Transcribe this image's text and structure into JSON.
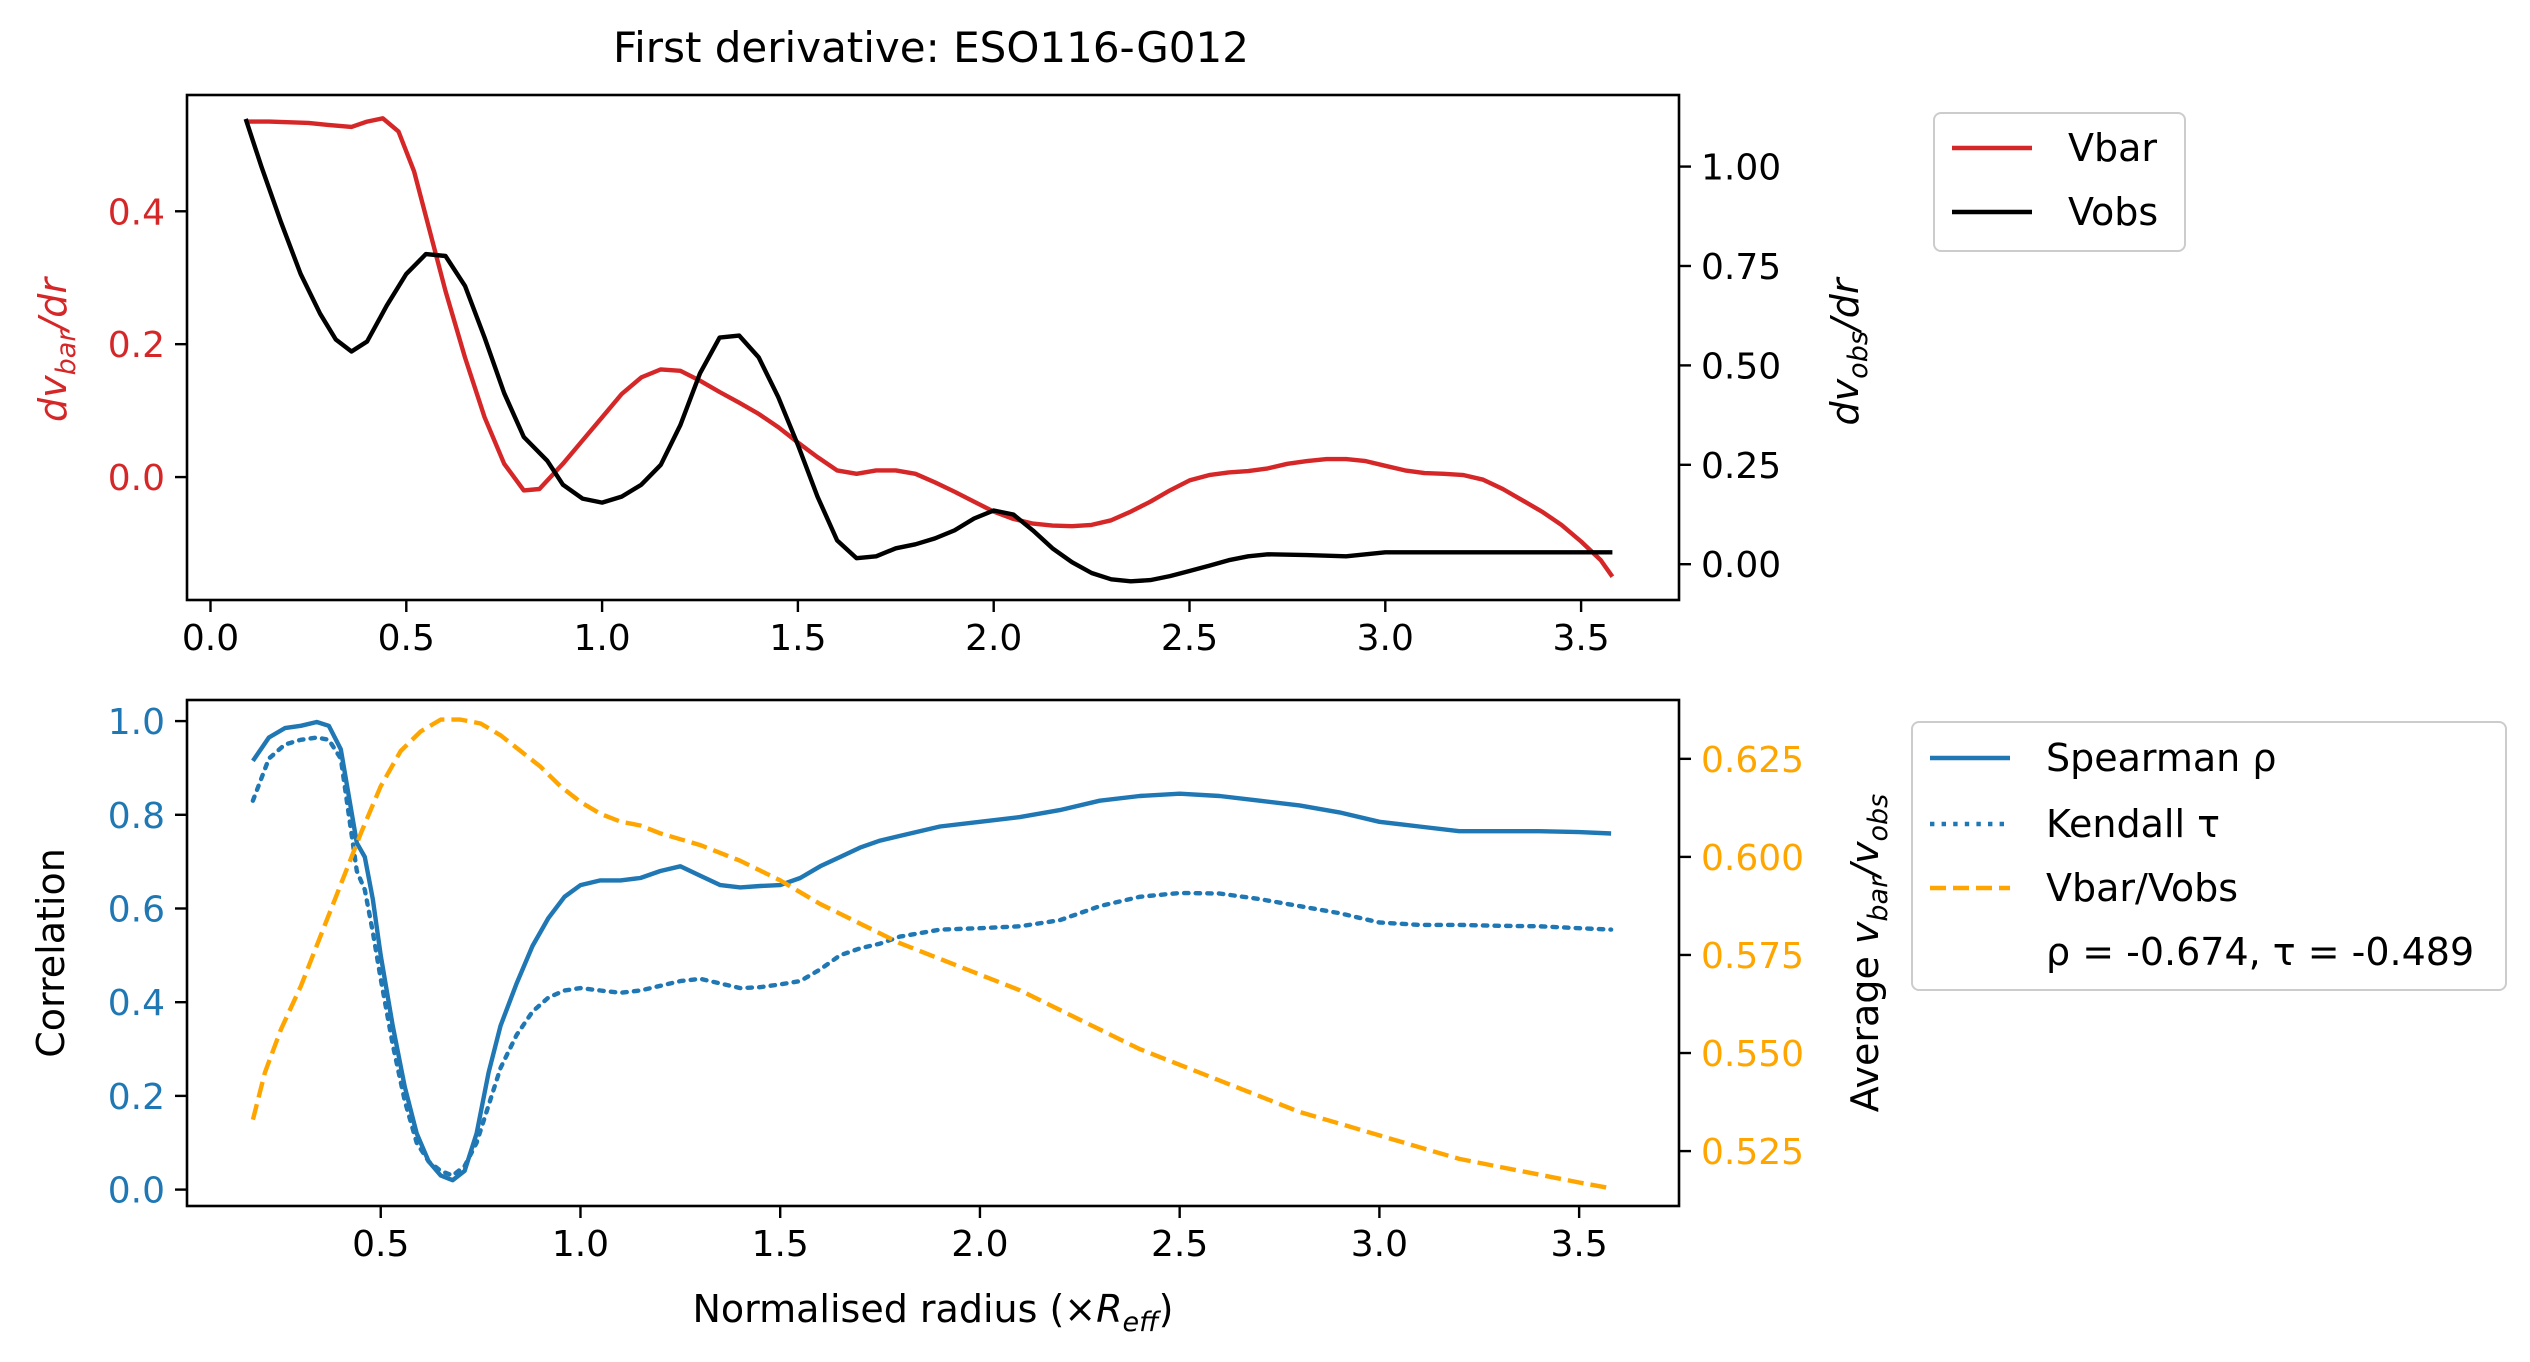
{
  "colors": {
    "vbar": "#d62728",
    "vobs": "#000000",
    "spearman": "#1f77b4",
    "kendall": "#1f77b4",
    "ratio": "#ffa500",
    "frame": "#000000"
  },
  "chart_data": [
    {
      "type": "line",
      "title": "First derivative: ESO116-G012",
      "xlabel": "",
      "ylabel_left": "dv_bar/dr",
      "ylabel_right": "dv_obs/dr",
      "xlim": [
        -0.06,
        3.75
      ],
      "ylim_left": [
        -0.185,
        0.575
      ],
      "ylim_right": [
        -0.09,
        1.18
      ],
      "xticks": [
        0.0,
        0.5,
        1.0,
        1.5,
        2.0,
        2.5,
        3.0,
        3.5
      ],
      "xtick_labels": [
        "0.0",
        "0.5",
        "1.0",
        "1.5",
        "2.0",
        "2.5",
        "3.0",
        "3.5"
      ],
      "yticks_left": [
        0.0,
        0.2,
        0.4
      ],
      "ytick_labels_left": [
        "0.0",
        "0.2",
        "0.4"
      ],
      "yticks_right": [
        0.0,
        0.25,
        0.5,
        0.75,
        1.0
      ],
      "ytick_labels_right": [
        "0.00",
        "0.25",
        "0.50",
        "0.75",
        "1.00"
      ],
      "legend": {
        "placement": "outside-upper-right",
        "entries": [
          "Vbar",
          "Vobs"
        ]
      },
      "series": [
        {
          "name": "Vbar",
          "axis": "left",
          "x": [
            0.09,
            0.15,
            0.25,
            0.3,
            0.36,
            0.4,
            0.44,
            0.48,
            0.52,
            0.56,
            0.6,
            0.65,
            0.7,
            0.75,
            0.8,
            0.84,
            0.9,
            0.95,
            1.0,
            1.05,
            1.1,
            1.15,
            1.2,
            1.25,
            1.3,
            1.35,
            1.4,
            1.45,
            1.5,
            1.55,
            1.6,
            1.65,
            1.7,
            1.75,
            1.8,
            1.85,
            1.9,
            1.95,
            2.0,
            2.05,
            2.1,
            2.15,
            2.2,
            2.25,
            2.3,
            2.35,
            2.4,
            2.45,
            2.5,
            2.55,
            2.6,
            2.65,
            2.7,
            2.75,
            2.8,
            2.85,
            2.9,
            2.95,
            3.0,
            3.05,
            3.1,
            3.15,
            3.2,
            3.25,
            3.3,
            3.35,
            3.4,
            3.45,
            3.5,
            3.55,
            3.58
          ],
          "y": [
            0.535,
            0.535,
            0.533,
            0.53,
            0.527,
            0.535,
            0.54,
            0.52,
            0.46,
            0.37,
            0.28,
            0.18,
            0.09,
            0.02,
            -0.02,
            -0.018,
            0.02,
            0.055,
            0.09,
            0.125,
            0.15,
            0.162,
            0.16,
            0.145,
            0.128,
            0.112,
            0.095,
            0.075,
            0.052,
            0.03,
            0.01,
            0.005,
            0.01,
            0.01,
            0.005,
            -0.008,
            -0.022,
            -0.037,
            -0.052,
            -0.063,
            -0.07,
            -0.073,
            -0.074,
            -0.072,
            -0.065,
            -0.052,
            -0.037,
            -0.02,
            -0.005,
            0.003,
            0.007,
            0.009,
            0.013,
            0.02,
            0.024,
            0.027,
            0.027,
            0.024,
            0.017,
            0.01,
            0.006,
            0.005,
            0.003,
            -0.004,
            -0.018,
            -0.035,
            -0.052,
            -0.072,
            -0.097,
            -0.125,
            -0.15
          ]
        },
        {
          "name": "Vobs",
          "axis": "right",
          "x": [
            0.09,
            0.13,
            0.18,
            0.23,
            0.28,
            0.32,
            0.36,
            0.4,
            0.45,
            0.5,
            0.55,
            0.6,
            0.65,
            0.7,
            0.75,
            0.8,
            0.86,
            0.9,
            0.95,
            1.0,
            1.05,
            1.1,
            1.15,
            1.2,
            1.25,
            1.3,
            1.35,
            1.4,
            1.45,
            1.5,
            1.55,
            1.6,
            1.65,
            1.7,
            1.75,
            1.8,
            1.85,
            1.9,
            1.95,
            2.0,
            2.05,
            2.1,
            2.15,
            2.2,
            2.25,
            2.3,
            2.35,
            2.4,
            2.45,
            2.5,
            2.55,
            2.6,
            2.65,
            2.7,
            2.8,
            2.9,
            3.0,
            3.2,
            3.4,
            3.58
          ],
          "y": [
            1.12,
            1.0,
            0.86,
            0.73,
            0.63,
            0.565,
            0.535,
            0.56,
            0.65,
            0.73,
            0.78,
            0.775,
            0.7,
            0.57,
            0.43,
            0.32,
            0.26,
            0.2,
            0.165,
            0.155,
            0.17,
            0.2,
            0.25,
            0.35,
            0.48,
            0.57,
            0.575,
            0.52,
            0.42,
            0.3,
            0.17,
            0.06,
            0.015,
            0.02,
            0.04,
            0.05,
            0.065,
            0.085,
            0.115,
            0.135,
            0.125,
            0.085,
            0.04,
            0.005,
            -0.022,
            -0.038,
            -0.043,
            -0.04,
            -0.03,
            -0.017,
            -0.004,
            0.01,
            0.02,
            0.025,
            0.023,
            0.02,
            0.03,
            0.03,
            0.03,
            0.03
          ]
        }
      ]
    },
    {
      "type": "line",
      "title": "",
      "xlabel": "Normalised radius (×R_eff)",
      "ylabel_left": "Correlation",
      "ylabel_right": "Average v_bar/v_obs",
      "xlim": [
        0.015,
        3.75
      ],
      "ylim_left": [
        -0.035,
        1.045
      ],
      "ylim_right": [
        0.511,
        0.64
      ],
      "xticks": [
        0.5,
        1.0,
        1.5,
        2.0,
        2.5,
        3.0,
        3.5
      ],
      "xtick_labels": [
        "0.5",
        "1.0",
        "1.5",
        "2.0",
        "2.5",
        "3.0",
        "3.5"
      ],
      "yticks_left": [
        0.0,
        0.2,
        0.4,
        0.6,
        0.8,
        1.0
      ],
      "ytick_labels_left": [
        "0.0",
        "0.2",
        "0.4",
        "0.6",
        "0.8",
        "1.0"
      ],
      "yticks_right": [
        0.525,
        0.55,
        0.575,
        0.6,
        0.625
      ],
      "ytick_labels_right": [
        "0.525",
        "0.550",
        "0.575",
        "0.600",
        "0.625"
      ],
      "legend": {
        "placement": "outside-upper-right",
        "entries": [
          "Spearman ρ",
          "Kendall τ",
          "Vbar/Vobs"
        ],
        "note": "ρ = -0.674, τ = -0.489"
      },
      "series": [
        {
          "name": "Spearman ρ",
          "axis": "left",
          "style": "solid",
          "x": [
            0.18,
            0.22,
            0.26,
            0.3,
            0.34,
            0.37,
            0.4,
            0.42,
            0.44,
            0.46,
            0.48,
            0.5,
            0.53,
            0.56,
            0.59,
            0.62,
            0.65,
            0.68,
            0.71,
            0.74,
            0.77,
            0.8,
            0.84,
            0.88,
            0.92,
            0.96,
            1.0,
            1.05,
            1.1,
            1.15,
            1.2,
            1.25,
            1.3,
            1.35,
            1.4,
            1.45,
            1.5,
            1.55,
            1.6,
            1.65,
            1.7,
            1.75,
            1.8,
            1.9,
            2.0,
            2.1,
            2.2,
            2.3,
            2.4,
            2.5,
            2.6,
            2.7,
            2.8,
            2.9,
            3.0,
            3.1,
            3.2,
            3.3,
            3.4,
            3.5,
            3.58
          ],
          "y": [
            0.915,
            0.965,
            0.985,
            0.99,
            0.998,
            0.99,
            0.94,
            0.84,
            0.74,
            0.71,
            0.62,
            0.5,
            0.35,
            0.22,
            0.12,
            0.06,
            0.03,
            0.02,
            0.04,
            0.12,
            0.25,
            0.35,
            0.44,
            0.52,
            0.58,
            0.625,
            0.65,
            0.66,
            0.66,
            0.665,
            0.68,
            0.69,
            0.67,
            0.65,
            0.645,
            0.648,
            0.65,
            0.665,
            0.69,
            0.71,
            0.73,
            0.745,
            0.755,
            0.775,
            0.785,
            0.795,
            0.81,
            0.83,
            0.84,
            0.845,
            0.84,
            0.83,
            0.82,
            0.805,
            0.785,
            0.775,
            0.765,
            0.765,
            0.765,
            0.763,
            0.76
          ]
        },
        {
          "name": "Kendall τ",
          "axis": "left",
          "style": "dotted",
          "x": [
            0.18,
            0.22,
            0.26,
            0.3,
            0.34,
            0.37,
            0.4,
            0.42,
            0.44,
            0.46,
            0.48,
            0.5,
            0.53,
            0.56,
            0.59,
            0.62,
            0.65,
            0.68,
            0.71,
            0.74,
            0.77,
            0.8,
            0.84,
            0.88,
            0.92,
            0.96,
            1.0,
            1.05,
            1.1,
            1.15,
            1.2,
            1.25,
            1.3,
            1.35,
            1.4,
            1.45,
            1.5,
            1.55,
            1.6,
            1.65,
            1.7,
            1.75,
            1.8,
            1.9,
            2.0,
            2.1,
            2.2,
            2.3,
            2.4,
            2.5,
            2.6,
            2.7,
            2.8,
            2.9,
            3.0,
            3.1,
            3.2,
            3.3,
            3.4,
            3.5,
            3.58
          ],
          "y": [
            0.83,
            0.92,
            0.95,
            0.96,
            0.965,
            0.96,
            0.92,
            0.8,
            0.68,
            0.64,
            0.55,
            0.45,
            0.31,
            0.19,
            0.1,
            0.06,
            0.04,
            0.03,
            0.05,
            0.1,
            0.18,
            0.26,
            0.33,
            0.38,
            0.41,
            0.425,
            0.43,
            0.425,
            0.42,
            0.425,
            0.435,
            0.445,
            0.45,
            0.44,
            0.43,
            0.432,
            0.438,
            0.445,
            0.47,
            0.5,
            0.515,
            0.525,
            0.54,
            0.555,
            0.558,
            0.562,
            0.575,
            0.605,
            0.625,
            0.633,
            0.632,
            0.62,
            0.605,
            0.59,
            0.57,
            0.565,
            0.565,
            0.563,
            0.562,
            0.558,
            0.555
          ]
        },
        {
          "name": "Vbar/Vobs",
          "axis": "right",
          "style": "dashed",
          "x": [
            0.18,
            0.21,
            0.25,
            0.3,
            0.35,
            0.4,
            0.45,
            0.5,
            0.55,
            0.6,
            0.65,
            0.7,
            0.75,
            0.8,
            0.85,
            0.9,
            0.95,
            1.0,
            1.05,
            1.1,
            1.15,
            1.2,
            1.3,
            1.4,
            1.5,
            1.6,
            1.7,
            1.8,
            1.9,
            2.0,
            2.1,
            2.2,
            2.3,
            2.4,
            2.5,
            2.6,
            2.7,
            2.8,
            2.9,
            3.0,
            3.1,
            3.2,
            3.3,
            3.4,
            3.5,
            3.58
          ],
          "y": [
            0.533,
            0.545,
            0.556,
            0.567,
            0.58,
            0.593,
            0.606,
            0.618,
            0.627,
            0.632,
            0.635,
            0.635,
            0.634,
            0.631,
            0.627,
            0.623,
            0.618,
            0.614,
            0.611,
            0.609,
            0.608,
            0.606,
            0.603,
            0.599,
            0.594,
            0.588,
            0.583,
            0.578,
            0.574,
            0.57,
            0.566,
            0.561,
            0.556,
            0.551,
            0.547,
            0.543,
            0.539,
            0.535,
            0.532,
            0.529,
            0.526,
            0.523,
            0.521,
            0.519,
            0.517,
            0.5155
          ]
        }
      ]
    }
  ]
}
